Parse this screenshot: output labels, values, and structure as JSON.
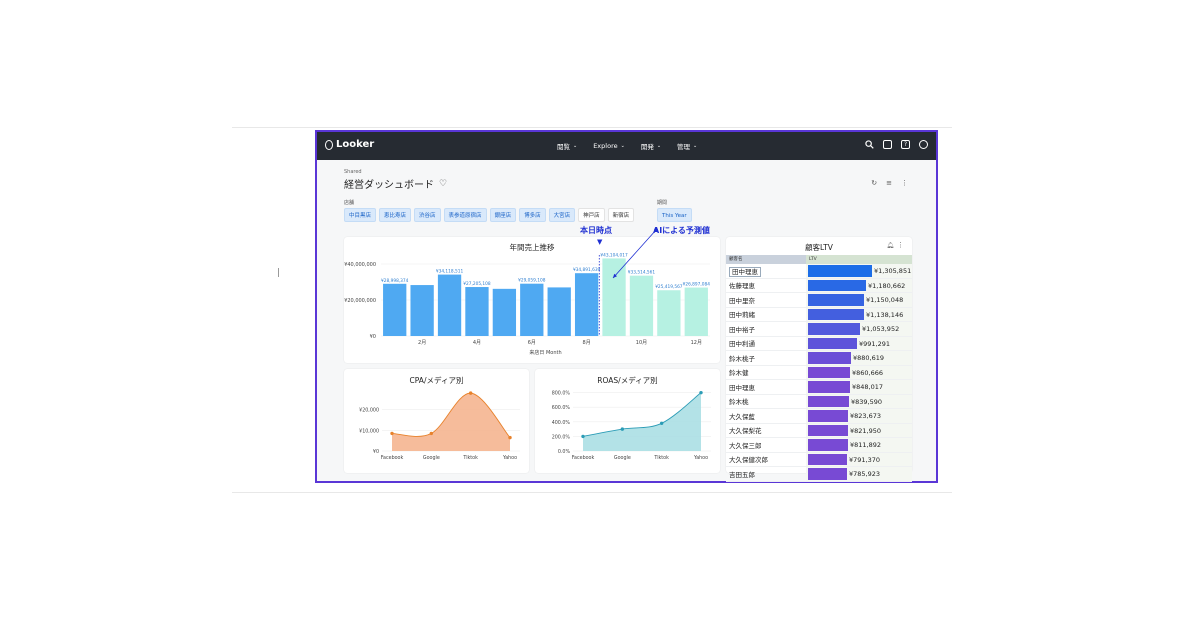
{
  "app": {
    "logo": "Looker",
    "nav": [
      {
        "label": "閲覧"
      },
      {
        "label": "Explore"
      },
      {
        "label": "開発"
      },
      {
        "label": "管理"
      }
    ]
  },
  "header": {
    "breadcrumb": "Shared",
    "title": "経営ダッシュボード"
  },
  "filters": {
    "store_label": "店舗",
    "period_label": "期間",
    "stores": [
      {
        "label": "中目黒店",
        "selected": true
      },
      {
        "label": "恵比寿店",
        "selected": true
      },
      {
        "label": "渋谷店",
        "selected": true
      },
      {
        "label": "表参道原宿店",
        "selected": true
      },
      {
        "label": "銀座店",
        "selected": true
      },
      {
        "label": "博多店",
        "selected": true
      },
      {
        "label": "大宮店",
        "selected": true
      },
      {
        "label": "神戸店",
        "selected": false
      },
      {
        "label": "新宿店",
        "selected": false
      }
    ],
    "period": "This Year"
  },
  "annotations": {
    "today": "本日時点",
    "ai_forecast": "AIによる予測値"
  },
  "colors": {
    "accent": "#5a36d6",
    "bar_actual": "#4fa9f2",
    "bar_forecast": "#b6f1e2",
    "cpa_fill": "#f4b08a",
    "cpa_line": "#e8822c",
    "roas_fill": "#a6dde3",
    "roas_line": "#2b9cb6",
    "annotation": "#1f2fd2"
  },
  "chart_data": [
    {
      "type": "bar",
      "title": "年間売上推移",
      "xlabel": "来店日 Month",
      "ylabel": "",
      "ylim": [
        0,
        40000000
      ],
      "yticks": [
        "¥0",
        "¥20,000,000",
        "¥40,000,000"
      ],
      "categories": [
        "1月",
        "2月",
        "3月",
        "4月",
        "5月",
        "6月",
        "7月",
        "8月",
        "9月",
        "10月",
        "11月",
        "12月"
      ],
      "xtick_labels": [
        "",
        "2月",
        "",
        "4月",
        "",
        "6月",
        "",
        "8月",
        "",
        "10月",
        "",
        "12月"
      ],
      "values": [
        28998374,
        28300000,
        34118511,
        27205108,
        26200000,
        29059108,
        27000000,
        34891639,
        43104017,
        33514561,
        25419567,
        26897084
      ],
      "data_labels": [
        "¥28,998,374",
        "",
        "¥34,118,511",
        "¥27,205,108",
        "",
        "¥29,059,108",
        "",
        "¥34,891,639",
        "¥43,104,017",
        "¥33,514,561",
        "¥25,419,567",
        "¥26,897,084"
      ],
      "forecast_from_index": 8
    },
    {
      "type": "area",
      "title": "CPA/メディア別",
      "categories": [
        "Facebook",
        "Google",
        "Tiktok",
        "Yahoo"
      ],
      "values": [
        8500,
        8500,
        28000,
        6500
      ],
      "yticks": [
        "¥0",
        "¥10,000",
        "¥20,000"
      ],
      "ylim": [
        0,
        30000
      ]
    },
    {
      "type": "area",
      "title": "ROAS/メディア別",
      "categories": [
        "Facebook",
        "Google",
        "Tiktok",
        "Yahoo"
      ],
      "values": [
        200,
        300,
        380,
        800
      ],
      "yticks": [
        "0.0%",
        "200.0%",
        "400.0%",
        "600.0%",
        "800.0%"
      ],
      "ylim": [
        0,
        850
      ]
    },
    {
      "type": "table",
      "title": "顧客LTV",
      "columns": [
        "顧客名",
        "LTV"
      ],
      "rows": [
        {
          "name": "田中理恵",
          "value": 1305851,
          "label": "¥1,305,851"
        },
        {
          "name": "佐藤理恵",
          "value": 1180662,
          "label": "¥1,180,662"
        },
        {
          "name": "田中里奈",
          "value": 1150048,
          "label": "¥1,150,048"
        },
        {
          "name": "田中莉緒",
          "value": 1138146,
          "label": "¥1,138,146"
        },
        {
          "name": "田中裕子",
          "value": 1053952,
          "label": "¥1,053,952"
        },
        {
          "name": "田中利通",
          "value": 991291,
          "label": "¥991,291"
        },
        {
          "name": "鈴木桃子",
          "value": 880619,
          "label": "¥880,619"
        },
        {
          "name": "鈴木健",
          "value": 860666,
          "label": "¥860,666"
        },
        {
          "name": "田中理恵",
          "value": 848017,
          "label": "¥848,017"
        },
        {
          "name": "鈴木桃",
          "value": 839590,
          "label": "¥839,590"
        },
        {
          "name": "大久保藍",
          "value": 823673,
          "label": "¥823,673"
        },
        {
          "name": "大久保梨花",
          "value": 821950,
          "label": "¥821,950"
        },
        {
          "name": "大久保三郎",
          "value": 811892,
          "label": "¥811,892"
        },
        {
          "name": "大久保健次郎",
          "value": 791370,
          "label": "¥791,370"
        },
        {
          "name": "吉田五郎",
          "value": 785923,
          "label": "¥785,923"
        }
      ]
    }
  ]
}
